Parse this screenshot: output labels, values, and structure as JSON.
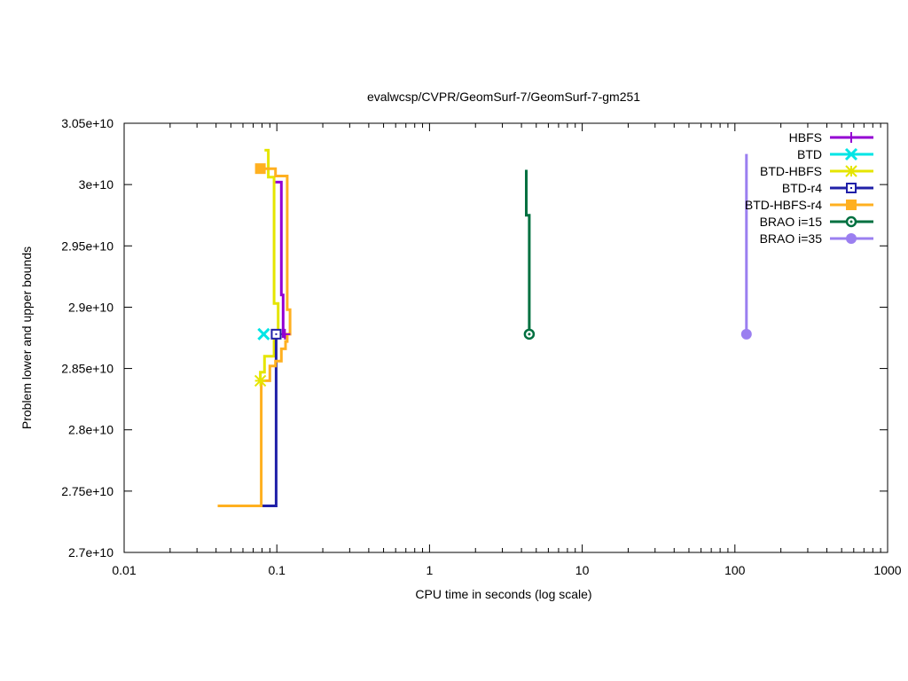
{
  "chart_data": {
    "type": "line",
    "title": "evalwcsp/CVPR/GeomSurf-7/GeomSurf-7-gm251",
    "xlabel": "CPU time in seconds (log scale)",
    "ylabel": "Problem lower and upper bounds",
    "xscale": "log",
    "xlim": [
      0.01,
      1000
    ],
    "ylim": [
      27000000000,
      30500000000
    ],
    "grid": false,
    "legend_position": "top-right",
    "x_ticks": [
      {
        "value": 0.01,
        "label": "0.01"
      },
      {
        "value": 0.1,
        "label": "0.1"
      },
      {
        "value": 1,
        "label": "1"
      },
      {
        "value": 10,
        "label": "10"
      },
      {
        "value": 100,
        "label": "100"
      },
      {
        "value": 1000,
        "label": "1000"
      }
    ],
    "y_ticks": [
      {
        "value": 27000000000,
        "label": "2.7e+10"
      },
      {
        "value": 27500000000,
        "label": "2.75e+10"
      },
      {
        "value": 28000000000,
        "label": "2.8e+10"
      },
      {
        "value": 28500000000,
        "label": "2.85e+10"
      },
      {
        "value": 29000000000,
        "label": "2.9e+10"
      },
      {
        "value": 29500000000,
        "label": "2.95e+10"
      },
      {
        "value": 30000000000,
        "label": "3e+10"
      },
      {
        "value": 30500000000,
        "label": "3.05e+10"
      }
    ],
    "series": [
      {
        "name": "HBFS",
        "color": "#9400d3",
        "marker": "plus",
        "points": [
          [
            0.097,
            30020000000
          ],
          [
            0.107,
            30020000000
          ],
          [
            0.107,
            29100000000
          ],
          [
            0.11,
            29100000000
          ],
          [
            0.11,
            28760000000
          ],
          [
            0.113,
            28760000000
          ],
          [
            0.113,
            28780000000
          ]
        ]
      },
      {
        "name": "BTD",
        "color": "#00e5e5",
        "marker": "x",
        "points": [
          [
            0.082,
            28780000000
          ]
        ]
      },
      {
        "name": "BTD-HBFS",
        "color": "#e5e500",
        "marker": "star",
        "points": [
          [
            0.083,
            30280000000
          ],
          [
            0.088,
            30280000000
          ],
          [
            0.088,
            30060000000
          ],
          [
            0.096,
            30060000000
          ],
          [
            0.096,
            29030000000
          ],
          [
            0.102,
            29030000000
          ],
          [
            0.102,
            28750000000
          ],
          [
            0.096,
            28750000000
          ],
          [
            0.096,
            28600000000
          ],
          [
            0.083,
            28600000000
          ],
          [
            0.083,
            28470000000
          ],
          [
            0.078,
            28470000000
          ],
          [
            0.078,
            28400000000
          ]
        ]
      },
      {
        "name": "BTD-r4",
        "color": "#2020a8",
        "marker": "square-open",
        "points": [
          [
            0.08,
            27380000000
          ],
          [
            0.099,
            27380000000
          ],
          [
            0.099,
            28520000000
          ],
          [
            0.099,
            28780000000
          ]
        ]
      },
      {
        "name": "BTD-HBFS-r4",
        "color": "#ffb020",
        "marker": "square-filled",
        "points": [
          [
            0.041,
            27380000000
          ],
          [
            0.079,
            27380000000
          ],
          [
            0.079,
            28400000000
          ],
          [
            0.09,
            28400000000
          ],
          [
            0.09,
            28520000000
          ],
          [
            0.098,
            28520000000
          ],
          [
            0.098,
            28560000000
          ],
          [
            0.107,
            28560000000
          ],
          [
            0.107,
            28660000000
          ],
          [
            0.114,
            28660000000
          ],
          [
            0.114,
            28720000000
          ],
          [
            0.117,
            28720000000
          ],
          [
            0.117,
            28780000000
          ],
          [
            0.122,
            28780000000
          ],
          [
            0.122,
            28980000000
          ],
          [
            0.117,
            28980000000
          ],
          [
            0.117,
            30070000000
          ],
          [
            0.098,
            30070000000
          ],
          [
            0.098,
            30130000000
          ],
          [
            0.078,
            30130000000
          ]
        ]
      },
      {
        "name": "BRAO i=15",
        "color": "#007040",
        "marker": "circle-dot",
        "points": [
          [
            4.3,
            30120000000
          ],
          [
            4.3,
            29750000000
          ],
          [
            4.5,
            29750000000
          ],
          [
            4.5,
            28780000000
          ]
        ]
      },
      {
        "name": "BRAO i=35",
        "color": "#9b7ff0",
        "marker": "circle-filled",
        "points": [
          [
            119,
            30250000000
          ],
          [
            119,
            28780000000
          ]
        ]
      }
    ]
  }
}
